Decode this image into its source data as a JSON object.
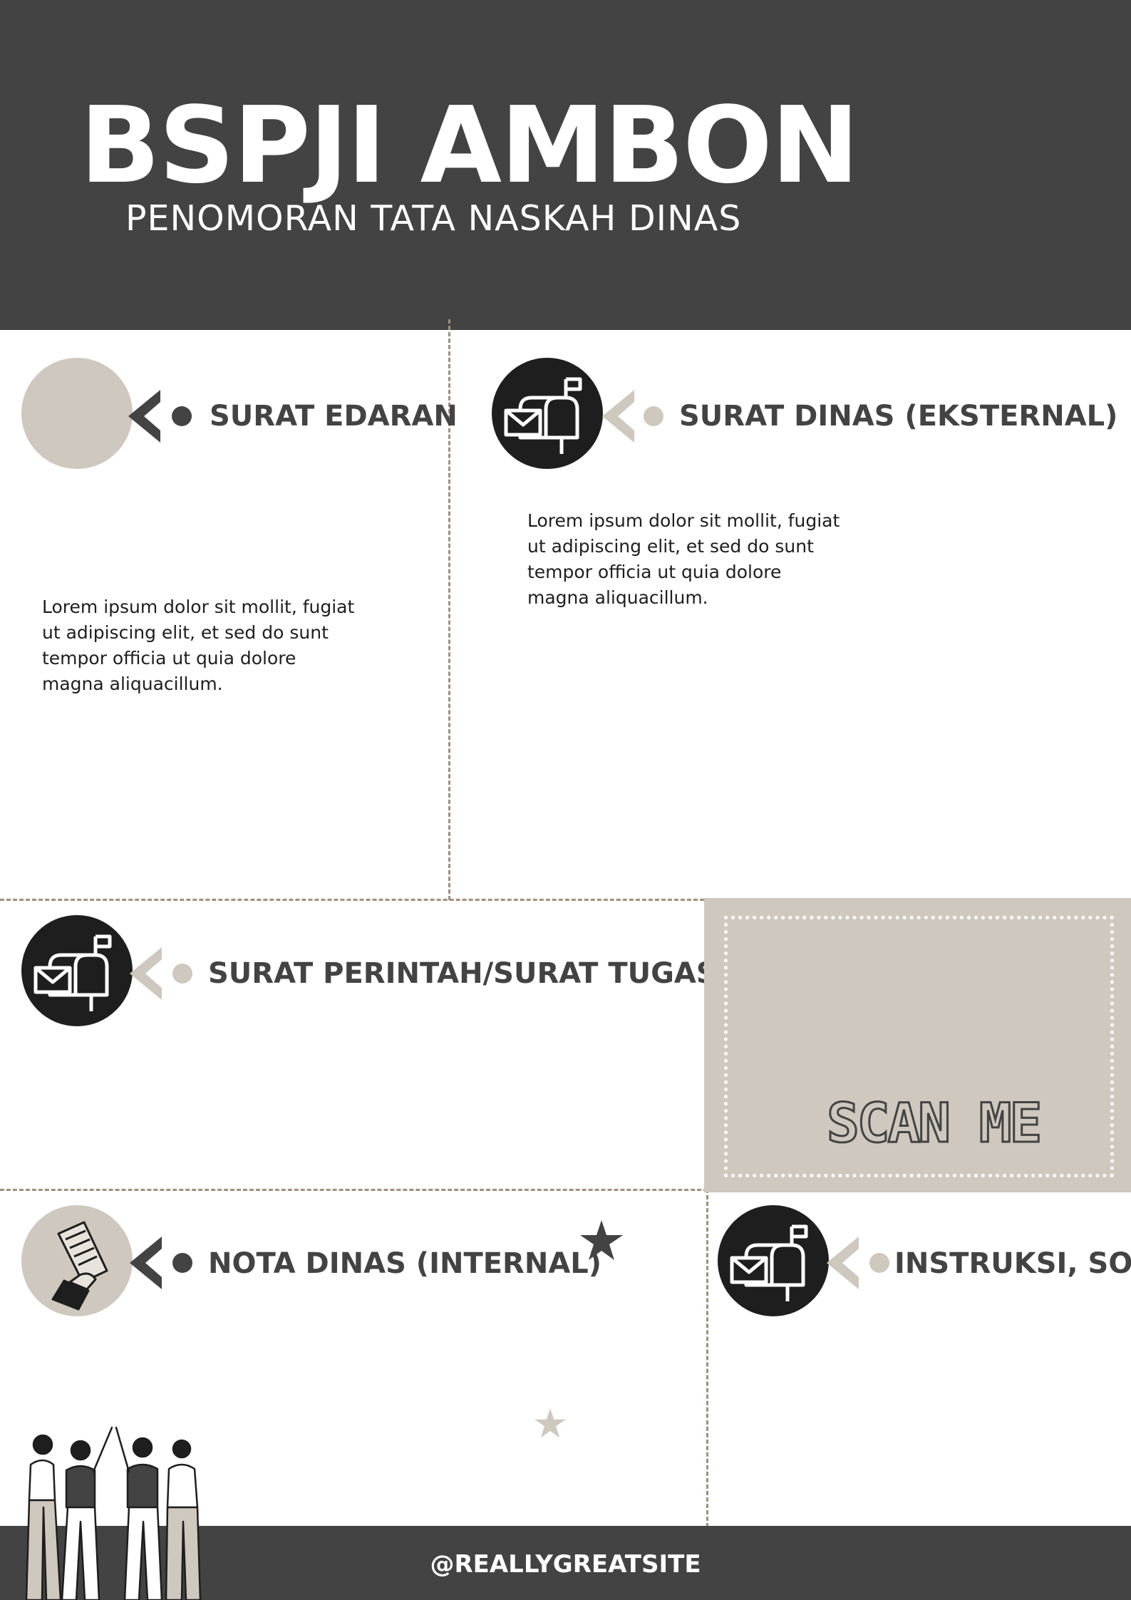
{
  "header": {
    "title": "BSPJI AMBON",
    "subtitle": "PENOMORAN TATA NASKAH DINAS"
  },
  "sections": {
    "surat_edaran": {
      "title": "SURAT EDARAN",
      "text": "Lorem ipsum dolor sit mollit, fugiat ut adipiscing elit, et sed do sunt tempor officia ut quia dolore magna aliquacillum.",
      "icon": "blank-circle"
    },
    "surat_dinas": {
      "title": "SURAT DINAS (EKSTERNAL)",
      "text": "Lorem ipsum dolor sit mollit, fugiat ut adipiscing elit, et sed do sunt tempor officia ut quia dolore magna aliquacillum.",
      "icon": "mailbox-icon"
    },
    "surat_perintah": {
      "title": "SURAT PERINTAH/SURAT TUGAS",
      "icon": "mailbox-icon"
    },
    "nota_dinas": {
      "title": "NOTA DINAS (INTERNAL)",
      "icon": "hand-document-icon"
    },
    "instruksi": {
      "title": "INSTRUKSI, SOP",
      "icon": "mailbox-icon"
    }
  },
  "scan": {
    "label": "SCAN ME"
  },
  "footer": {
    "handle": "@REALLYGREATSITE"
  },
  "colors": {
    "dark": "#434343",
    "beige": "#cfc8be",
    "black": "#1e1e1e",
    "divider": "#a0907a"
  }
}
